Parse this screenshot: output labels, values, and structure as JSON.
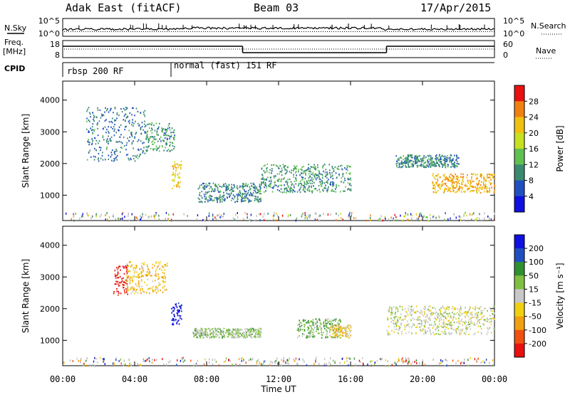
{
  "header": {
    "station": "Adak East (fitACF)",
    "beam": "Beam 03",
    "date": "17/Apr/2015"
  },
  "strip_labels": {
    "nsky": "N.Sky",
    "nsearch": "N.Search",
    "freq": "Freq.",
    "freq_unit": "[MHz]",
    "nave": "Nave",
    "cpid": "CPID"
  },
  "strip_ticks": {
    "nsky_left": [
      "10^5",
      "10^0"
    ],
    "nsky_right": [
      "10^5",
      "10^0"
    ],
    "freq_left": [
      "18",
      "8"
    ],
    "nave_right": [
      "60",
      "0"
    ]
  },
  "cpid_segments": [
    {
      "label": "rbsp 200 RF",
      "start_hour": 0
    },
    {
      "label": "normal (fast) 151 RF",
      "start_hour": 6
    }
  ],
  "nave_steps": [
    {
      "start_hour": 0,
      "end_hour": 10,
      "level": "high"
    },
    {
      "start_hour": 10,
      "end_hour": 18,
      "level": "low"
    },
    {
      "start_hour": 18,
      "end_hour": 24,
      "level": "high"
    }
  ],
  "colors": {
    "power": [
      "#1010e0",
      "#2050c0",
      "#3a8a70",
      "#60c050",
      "#c8e020",
      "#f0c010",
      "#f08010",
      "#e81010"
    ],
    "velocity": [
      "#e81010",
      "#f05010",
      "#f0a010",
      "#f0d010",
      "#c8c8c8",
      "#80c040",
      "#309030",
      "#2050c0",
      "#1010e0"
    ],
    "ground": "#bbbbbb"
  },
  "power_colorbar": {
    "label": "Power [dB]",
    "ticks": [
      "28",
      "24",
      "20",
      "16",
      "12",
      "8",
      "4"
    ]
  },
  "velocity_colorbar": {
    "label": "Velocity [m s⁻¹]",
    "ticks": [
      "200",
      "100",
      "50",
      "15",
      "-15",
      "-50",
      "-100",
      "-200"
    ]
  },
  "x_axis": {
    "label": "Time UT",
    "ticks": [
      "00:00",
      "04:00",
      "08:00",
      "12:00",
      "16:00",
      "20:00",
      "00:00"
    ]
  },
  "chart_data": [
    {
      "type": "heatmap",
      "name": "power",
      "ylabel": "Slant Range [km]",
      "xlabel": "",
      "xlim_hours": [
        0,
        24
      ],
      "ylim": [
        200,
        4600
      ],
      "yticks": [
        1000,
        2000,
        3000,
        4000
      ],
      "clim": [
        0,
        30
      ],
      "regions": [
        {
          "x": [
            1.3,
            4.6
          ],
          "y": [
            2100,
            3800
          ],
          "value": 8
        },
        {
          "x": [
            4.6,
            6.2
          ],
          "y": [
            2400,
            3300
          ],
          "value": 10
        },
        {
          "x": [
            6.0,
            6.6
          ],
          "y": [
            1200,
            2100
          ],
          "value": 20
        },
        {
          "x": [
            7.5,
            11.0
          ],
          "y": [
            800,
            1400
          ],
          "value": 9
        },
        {
          "x": [
            11.0,
            16.0
          ],
          "y": [
            1100,
            2000
          ],
          "value": 10
        },
        {
          "x": [
            18.5,
            22.0
          ],
          "y": [
            1900,
            2300
          ],
          "value": 9
        },
        {
          "x": [
            20.5,
            24.0
          ],
          "y": [
            1100,
            1700
          ],
          "value": 22
        }
      ]
    },
    {
      "type": "heatmap",
      "name": "velocity",
      "ylabel": "Slant Range [km]",
      "xlabel": "Time UT",
      "xlim_hours": [
        0,
        24
      ],
      "ylim": [
        200,
        4600
      ],
      "yticks": [
        1000,
        2000,
        3000,
        4000
      ],
      "clim": [
        -200,
        200
      ],
      "regions": [
        {
          "x": [
            2.8,
            3.6
          ],
          "y": [
            2400,
            3400
          ],
          "value": -200
        },
        {
          "x": [
            3.5,
            5.8
          ],
          "y": [
            2500,
            3500
          ],
          "value": -60
        },
        {
          "x": [
            6.0,
            6.6
          ],
          "y": [
            1500,
            2200
          ],
          "value": 200
        },
        {
          "x": [
            7.2,
            11.0
          ],
          "y": [
            1100,
            1400
          ],
          "value": 30
        },
        {
          "x": [
            13.0,
            15.5
          ],
          "y": [
            1100,
            1700
          ],
          "value": 50
        },
        {
          "x": [
            14.8,
            16.0
          ],
          "y": [
            1100,
            1500
          ],
          "value": -40
        },
        {
          "x": [
            18.0,
            24.0
          ],
          "y": [
            1200,
            2100
          ],
          "value": 0
        }
      ]
    }
  ]
}
